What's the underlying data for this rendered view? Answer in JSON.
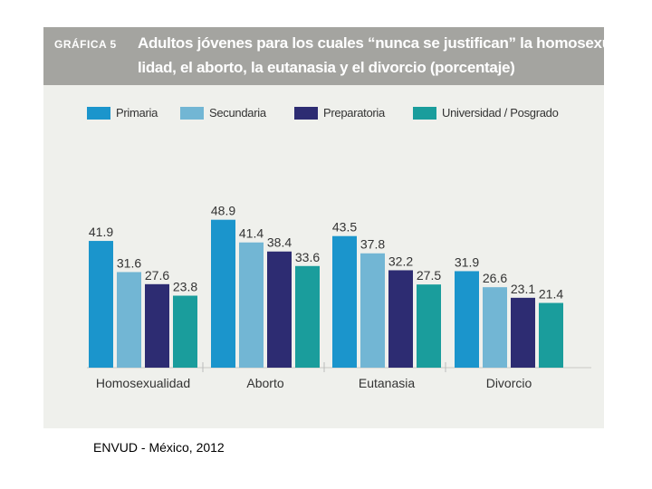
{
  "header": {
    "label": "GRÁFICA 5",
    "title_line1": "Adultos jóvenes para los cuales “nunca se justifican” la homosexua-",
    "title_line2": "lidad, el aborto, la eutanasia y el divorcio (porcentaje)"
  },
  "colors": {
    "header_bg": "#a4a4a0",
    "figure_bg": "#eff0ec",
    "primaria": "#1b95cc",
    "secundaria": "#72b6d4",
    "preparatoria": "#2d2c72",
    "universidad": "#1a9d9c"
  },
  "chart_data": {
    "type": "bar",
    "title": "Adultos jóvenes para los cuales “nunca se justifican” la homosexualidad, el aborto, la eutanasia y el divorcio (porcentaje)",
    "categories": [
      "Homosexualidad",
      "Aborto",
      "Eutanasia",
      "Divorcio"
    ],
    "series": [
      {
        "name": "Primaria",
        "color": "#1b95cc",
        "values": [
          41.9,
          48.9,
          43.5,
          31.9
        ],
        "labels": [
          "41.9",
          "48.9",
          "43.5",
          "31.9"
        ]
      },
      {
        "name": "Secundaria",
        "color": "#72b6d4",
        "values": [
          31.6,
          41.4,
          37.8,
          26.6
        ],
        "labels": [
          "31.6",
          "41.4",
          "37.8",
          "26.6"
        ]
      },
      {
        "name": "Preparatoria",
        "color": "#2d2c72",
        "values": [
          27.6,
          38.4,
          32.2,
          23.1
        ],
        "labels": [
          "27.6",
          "38.4",
          "32.2",
          "23.1"
        ]
      },
      {
        "name": "Universidad / Posgrado",
        "color": "#1a9d9c",
        "values": [
          23.8,
          33.6,
          27.5,
          21.4
        ],
        "labels": [
          "23.8",
          "33.6",
          "27.5",
          "21.4"
        ]
      }
    ],
    "ylim": [
      0,
      50
    ],
    "xlabel": "",
    "ylabel": "",
    "grid": false,
    "legend": "top"
  },
  "footer": {
    "source": "ENVUD - México, 2012"
  }
}
